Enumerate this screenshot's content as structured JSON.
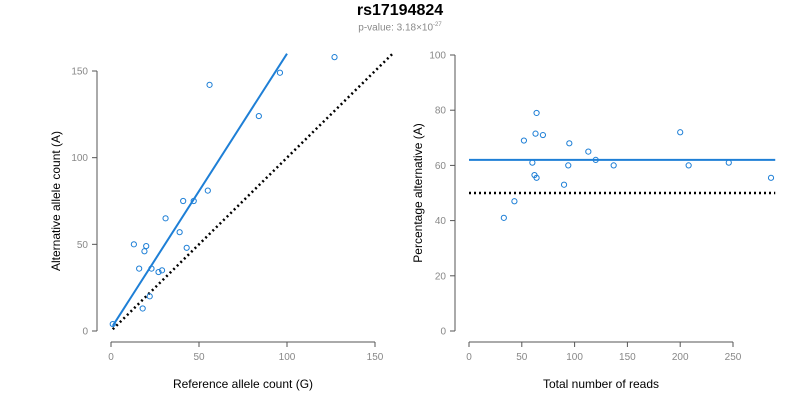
{
  "header": {
    "title": "rs17194824",
    "pvalue_prefix": "p-value: 3.18×10",
    "pvalue_exponent": "-27"
  },
  "colors": {
    "accent": "#1e7fd6",
    "reference": "#000000"
  },
  "chart_data": [
    {
      "type": "scatter",
      "xlabel": "Reference allele count (G)",
      "ylabel": "Alternative allele count (A)",
      "xlim": [
        0,
        160
      ],
      "ylim": [
        0,
        160
      ],
      "xticks": [
        0,
        50,
        100,
        150
      ],
      "yticks": [
        0,
        50,
        100,
        150
      ],
      "grid": false,
      "points": [
        [
          1,
          4
        ],
        [
          13,
          50
        ],
        [
          16,
          36
        ],
        [
          18,
          13
        ],
        [
          19,
          46
        ],
        [
          20,
          49
        ],
        [
          22,
          20
        ],
        [
          23,
          36
        ],
        [
          27,
          34
        ],
        [
          29,
          35
        ],
        [
          31,
          65
        ],
        [
          39,
          57
        ],
        [
          41,
          75
        ],
        [
          43,
          48
        ],
        [
          47,
          75
        ],
        [
          55,
          81
        ],
        [
          56,
          142
        ],
        [
          84,
          124
        ],
        [
          96,
          149
        ],
        [
          127,
          158
        ]
      ],
      "fit_line": {
        "x": [
          1,
          100
        ],
        "y": [
          3,
          160
        ]
      },
      "reference_line": {
        "x": [
          1,
          160
        ],
        "y": [
          1,
          160
        ]
      }
    },
    {
      "type": "scatter",
      "xlabel": "Total number of reads",
      "ylabel": "Percentage alternative (A)",
      "xlim": [
        0,
        290
      ],
      "ylim": [
        0,
        100
      ],
      "xticks": [
        0,
        50,
        100,
        150,
        200,
        250
      ],
      "yticks": [
        0,
        20,
        40,
        60,
        80,
        100
      ],
      "grid": false,
      "points": [
        [
          33,
          41
        ],
        [
          43,
          47
        ],
        [
          52,
          69
        ],
        [
          60,
          61
        ],
        [
          62,
          56.5
        ],
        [
          64,
          55.5
        ],
        [
          63,
          71.5
        ],
        [
          64,
          79
        ],
        [
          70,
          71
        ],
        [
          90,
          53
        ],
        [
          94,
          60
        ],
        [
          95,
          68
        ],
        [
          113,
          65
        ],
        [
          120,
          62
        ],
        [
          137,
          60
        ],
        [
          200,
          72
        ],
        [
          208,
          60
        ],
        [
          246,
          61
        ],
        [
          286,
          55.5
        ]
      ],
      "fit_line": {
        "x": [
          0,
          290
        ],
        "y": [
          62,
          62
        ]
      },
      "reference_line": {
        "x": [
          0,
          290
        ],
        "y": [
          50,
          50
        ]
      }
    }
  ]
}
